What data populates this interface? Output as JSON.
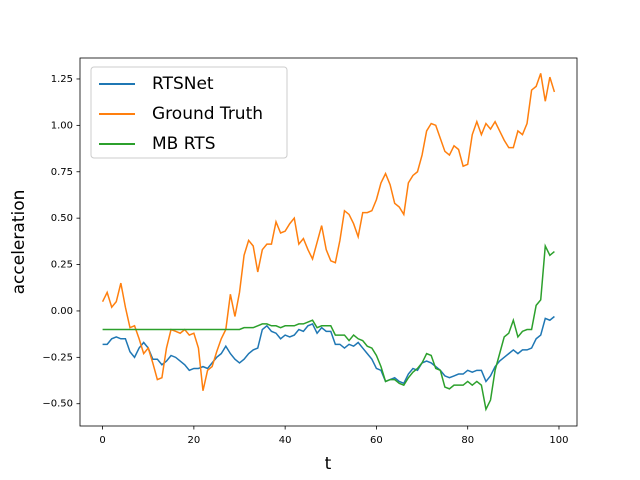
{
  "chart_data": {
    "type": "line",
    "xlabel": "t",
    "ylabel": "acceleration",
    "x": [
      0,
      1,
      2,
      3,
      4,
      5,
      6,
      7,
      8,
      9,
      10,
      11,
      12,
      13,
      14,
      15,
      16,
      17,
      18,
      19,
      20,
      21,
      22,
      23,
      24,
      25,
      26,
      27,
      28,
      29,
      30,
      31,
      32,
      33,
      34,
      35,
      36,
      37,
      38,
      39,
      40,
      41,
      42,
      43,
      44,
      45,
      46,
      47,
      48,
      49,
      50,
      51,
      52,
      53,
      54,
      55,
      56,
      57,
      58,
      59,
      60,
      61,
      62,
      63,
      64,
      65,
      66,
      67,
      68,
      69,
      70,
      71,
      72,
      73,
      74,
      75,
      76,
      77,
      78,
      79,
      80,
      81,
      82,
      83,
      84,
      85,
      86,
      87,
      88,
      89,
      90,
      91,
      92,
      93,
      94,
      95,
      96,
      97,
      98,
      99
    ],
    "series": [
      {
        "name": "RTSNet",
        "color": "#1f77b4",
        "values": [
          -0.18,
          -0.18,
          -0.15,
          -0.14,
          -0.15,
          -0.15,
          -0.22,
          -0.25,
          -0.2,
          -0.17,
          -0.2,
          -0.26,
          -0.26,
          -0.29,
          -0.27,
          -0.24,
          -0.25,
          -0.27,
          -0.29,
          -0.32,
          -0.31,
          -0.31,
          -0.3,
          -0.31,
          -0.28,
          -0.25,
          -0.23,
          -0.19,
          -0.23,
          -0.26,
          -0.28,
          -0.26,
          -0.23,
          -0.21,
          -0.2,
          -0.1,
          -0.08,
          -0.11,
          -0.12,
          -0.15,
          -0.13,
          -0.14,
          -0.13,
          -0.1,
          -0.11,
          -0.08,
          -0.07,
          -0.12,
          -0.09,
          -0.11,
          -0.11,
          -0.18,
          -0.18,
          -0.2,
          -0.18,
          -0.19,
          -0.17,
          -0.2,
          -0.23,
          -0.26,
          -0.31,
          -0.32,
          -0.38,
          -0.37,
          -0.36,
          -0.38,
          -0.39,
          -0.34,
          -0.31,
          -0.32,
          -0.28,
          -0.27,
          -0.28,
          -0.3,
          -0.32,
          -0.35,
          -0.36,
          -0.35,
          -0.34,
          -0.34,
          -0.32,
          -0.33,
          -0.32,
          -0.32,
          -0.38,
          -0.35,
          -0.3,
          -0.27,
          -0.25,
          -0.23,
          -0.21,
          -0.23,
          -0.21,
          -0.21,
          -0.2,
          -0.15,
          -0.13,
          -0.04,
          -0.05,
          -0.03
        ]
      },
      {
        "name": "Ground Truth",
        "color": "#ff7f0e",
        "values": [
          0.05,
          0.1,
          0.02,
          0.05,
          0.15,
          0.02,
          -0.09,
          -0.08,
          -0.15,
          -0.23,
          -0.2,
          -0.28,
          -0.37,
          -0.36,
          -0.2,
          -0.1,
          -0.11,
          -0.12,
          -0.1,
          -0.13,
          -0.12,
          -0.2,
          -0.43,
          -0.32,
          -0.3,
          -0.22,
          -0.15,
          -0.1,
          0.09,
          -0.03,
          0.1,
          0.3,
          0.38,
          0.35,
          0.21,
          0.33,
          0.36,
          0.36,
          0.48,
          0.42,
          0.43,
          0.47,
          0.5,
          0.36,
          0.39,
          0.33,
          0.28,
          0.37,
          0.46,
          0.33,
          0.27,
          0.26,
          0.38,
          0.54,
          0.52,
          0.47,
          0.4,
          0.53,
          0.53,
          0.54,
          0.6,
          0.69,
          0.74,
          0.68,
          0.58,
          0.56,
          0.52,
          0.69,
          0.73,
          0.75,
          0.84,
          0.97,
          1.01,
          1.0,
          0.93,
          0.86,
          0.84,
          0.89,
          0.87,
          0.78,
          0.79,
          0.95,
          1.02,
          0.95,
          1.01,
          0.98,
          1.02,
          0.97,
          0.92,
          0.88,
          0.88,
          0.97,
          0.95,
          1.01,
          1.19,
          1.21,
          1.28,
          1.13,
          1.26,
          1.18
        ]
      },
      {
        "name": "MB RTS",
        "color": "#2ca02c",
        "values": [
          -0.1,
          -0.1,
          -0.1,
          -0.1,
          -0.1,
          -0.1,
          -0.1,
          -0.1,
          -0.1,
          -0.1,
          -0.1,
          -0.1,
          -0.1,
          -0.1,
          -0.1,
          -0.1,
          -0.1,
          -0.1,
          -0.1,
          -0.1,
          -0.1,
          -0.1,
          -0.1,
          -0.1,
          -0.1,
          -0.1,
          -0.1,
          -0.1,
          -0.1,
          -0.1,
          -0.1,
          -0.09,
          -0.09,
          -0.09,
          -0.08,
          -0.07,
          -0.07,
          -0.08,
          -0.08,
          -0.09,
          -0.08,
          -0.08,
          -0.08,
          -0.07,
          -0.07,
          -0.06,
          -0.05,
          -0.09,
          -0.08,
          -0.08,
          -0.08,
          -0.13,
          -0.13,
          -0.13,
          -0.16,
          -0.13,
          -0.15,
          -0.16,
          -0.19,
          -0.2,
          -0.24,
          -0.3,
          -0.38,
          -0.37,
          -0.37,
          -0.39,
          -0.4,
          -0.36,
          -0.33,
          -0.31,
          -0.28,
          -0.23,
          -0.24,
          -0.31,
          -0.32,
          -0.41,
          -0.42,
          -0.4,
          -0.4,
          -0.4,
          -0.38,
          -0.4,
          -0.38,
          -0.4,
          -0.53,
          -0.48,
          -0.32,
          -0.23,
          -0.14,
          -0.12,
          -0.05,
          -0.14,
          -0.11,
          -0.1,
          -0.1,
          0.03,
          0.06,
          0.35,
          0.3,
          0.32
        ]
      }
    ],
    "xlim": [
      -4.95,
      103.95
    ],
    "xticks": [
      0,
      20,
      40,
      60,
      80,
      100
    ],
    "ylim": [
      -0.62,
      1.363
    ],
    "yticks": [
      {
        "value": -0.5,
        "label": "−0.50"
      },
      {
        "value": -0.25,
        "label": "−0.25"
      },
      {
        "value": 0,
        "label": "0.00"
      },
      {
        "value": 0.25,
        "label": "0.25"
      },
      {
        "value": 0.5,
        "label": "0.50"
      },
      {
        "value": 0.75,
        "label": "0.75"
      },
      {
        "value": 1,
        "label": "1.00"
      },
      {
        "value": 1.25,
        "label": "1.25"
      }
    ],
    "legend": "upper left",
    "grid": false
  }
}
